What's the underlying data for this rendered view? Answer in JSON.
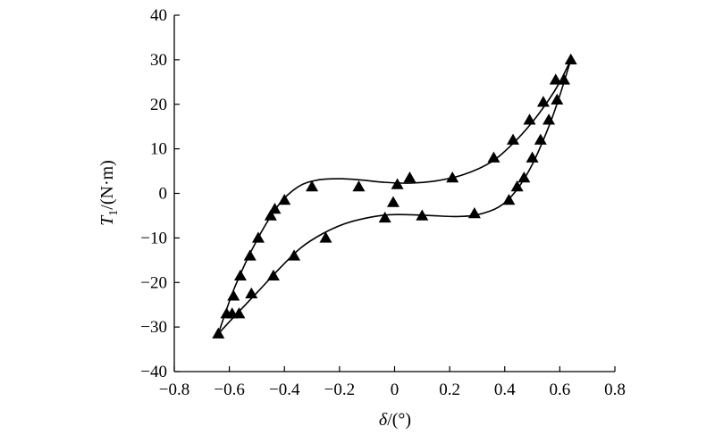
{
  "chart_data": {
    "type": "scatter",
    "xlabel": {
      "var": "δ",
      "unit": "/(°)"
    },
    "ylabel": {
      "var": "T",
      "sub": "1",
      "unit": "/(N·m)"
    },
    "xlim": [
      -0.8,
      0.8
    ],
    "ylim": [
      -40,
      40
    ],
    "xticks": [
      -0.8,
      -0.6,
      -0.4,
      -0.2,
      0,
      0.2,
      0.4,
      0.6,
      0.8
    ],
    "yticks": [
      -40,
      -30,
      -20,
      -10,
      0,
      10,
      20,
      30,
      40
    ],
    "xtick_labels": [
      "−0.8",
      "−0.6",
      "−0.4",
      "−0.2",
      "0",
      "0.2",
      "0.4",
      "0.6",
      "0.8"
    ],
    "ytick_labels": [
      "−40",
      "−30",
      "−20",
      "−10",
      "0",
      "10",
      "20",
      "30",
      "40"
    ],
    "grid": false,
    "marker": "triangle",
    "marker_color": "#000000",
    "line_color": "#000000",
    "series": [
      {
        "points": [
          [
            -0.64,
            -31.5
          ],
          [
            -0.61,
            -27.0
          ],
          [
            -0.585,
            -23.0
          ],
          [
            -0.56,
            -18.5
          ],
          [
            -0.525,
            -14.0
          ],
          [
            -0.495,
            -10.0
          ],
          [
            -0.45,
            -5.0
          ],
          [
            -0.435,
            -3.5
          ],
          [
            -0.4,
            -1.5
          ],
          [
            -0.3,
            1.5
          ],
          [
            -0.13,
            1.5
          ],
          [
            0.01,
            2.0
          ],
          [
            0.055,
            3.5
          ],
          [
            0.21,
            3.5
          ],
          [
            0.36,
            8.0
          ],
          [
            0.43,
            12.0
          ],
          [
            0.49,
            16.5
          ],
          [
            0.54,
            20.5
          ],
          [
            0.585,
            25.5
          ],
          [
            0.615,
            25.5
          ],
          [
            0.64,
            30.0
          ]
        ]
      },
      {
        "points": [
          [
            -0.59,
            -27.0
          ],
          [
            -0.565,
            -27.0
          ],
          [
            -0.52,
            -22.5
          ],
          [
            -0.44,
            -18.5
          ],
          [
            -0.365,
            -14.0
          ],
          [
            -0.25,
            -10.0
          ],
          [
            -0.035,
            -5.5
          ],
          [
            -0.005,
            -2.0
          ],
          [
            0.1,
            -5.0
          ],
          [
            0.29,
            -4.5
          ],
          [
            0.415,
            -1.5
          ],
          [
            0.445,
            1.5
          ],
          [
            0.47,
            3.5
          ],
          [
            0.5,
            8.0
          ],
          [
            0.53,
            12.0
          ],
          [
            0.56,
            16.5
          ],
          [
            0.59,
            21.0
          ]
        ]
      }
    ],
    "curves": [
      {
        "points": [
          [
            -0.64,
            -31.5
          ],
          [
            -0.58,
            -21.0
          ],
          [
            -0.5,
            -10.5
          ],
          [
            -0.42,
            -2.5
          ],
          [
            -0.35,
            1.5
          ],
          [
            -0.28,
            3.0
          ],
          [
            -0.2,
            3.3
          ],
          [
            -0.12,
            3.0
          ],
          [
            -0.04,
            2.5
          ],
          [
            0.05,
            2.3
          ],
          [
            0.15,
            2.8
          ],
          [
            0.25,
            4.2
          ],
          [
            0.35,
            7.0
          ],
          [
            0.43,
            11.2
          ],
          [
            0.5,
            16.0
          ],
          [
            0.56,
            21.0
          ],
          [
            0.6,
            25.0
          ],
          [
            0.64,
            30.0
          ]
        ]
      },
      {
        "points": [
          [
            -0.64,
            -31.5
          ],
          [
            -0.58,
            -27.5
          ],
          [
            -0.5,
            -22.3
          ],
          [
            -0.42,
            -17.0
          ],
          [
            -0.34,
            -12.2
          ],
          [
            -0.26,
            -9.0
          ],
          [
            -0.18,
            -6.8
          ],
          [
            -0.1,
            -5.5
          ],
          [
            -0.02,
            -4.8
          ],
          [
            0.06,
            -4.8
          ],
          [
            0.14,
            -5.0
          ],
          [
            0.22,
            -5.2
          ],
          [
            0.3,
            -4.8
          ],
          [
            0.38,
            -3.0
          ],
          [
            0.44,
            0.5
          ],
          [
            0.5,
            6.5
          ],
          [
            0.56,
            15.0
          ],
          [
            0.6,
            22.0
          ],
          [
            0.64,
            30.0
          ]
        ]
      }
    ]
  }
}
